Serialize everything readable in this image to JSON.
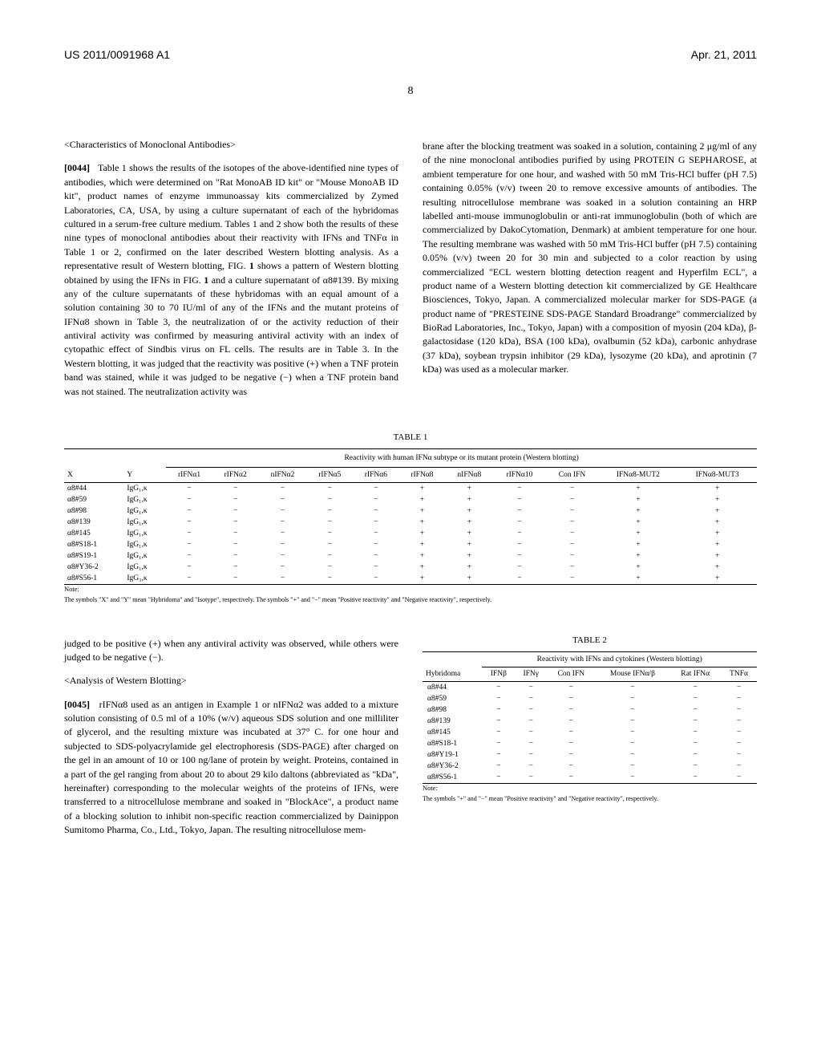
{
  "header": {
    "patent_number": "US 2011/0091968 A1",
    "date": "Apr. 21, 2011"
  },
  "page_number": "8",
  "section1_title": "<Characteristics of Monoclonal Antibodies>",
  "para_0044_num": "[0044]",
  "para_0044_text": "Table 1 shows the results of the isotopes of the above-identified nine types of antibodies, which were determined on \"Rat MonoAB ID kit\" or \"Mouse MonoAB ID kit\", product names of enzyme immunoassay kits commercialized by Zymed Laboratories, CA, USA, by using a culture supernatant of each of the hybridomas cultured in a serum-free culture medium. Tables 1 and 2 show both the results of these nine types of monoclonal antibodies about their reactivity with IFNs and TNFα in Table 1 or 2, confirmed on the later described Western blotting analysis. As a representative result of Western blotting, FIG. ",
  "para_0044_figref": "1",
  "para_0044_text2": " shows a pattern of Western blotting obtained by using the IFNs in FIG. ",
  "para_0044_figref2": "1",
  "para_0044_text3": " and a culture supernatant of α8#139. By mixing any of the culture supernatants of these hybridomas with an equal amount of a solution containing 30 to 70 IU/ml of any of the IFNs and the mutant proteins of IFNα8 shown in Table 3, the neutralization of or the activity reduction of their antiviral activity was confirmed by measuring antiviral activity with an index of cytopathic effect of Sindbis virus on FL cells. The results are in Table 3. In the Western blotting, it was judged that the reactivity was positive (+) when a TNF protein band was stained, while it was judged to be negative (−) when a TNF protein band was not stained. The neutralization activity was",
  "col2_para1": "brane after the blocking treatment was soaked in a solution, containing 2 μg/ml of any of the nine monoclonal antibodies purified by using PROTEIN G SEPHAROSE, at ambient temperature for one hour, and washed with 50 mM Tris-HCl buffer (pH 7.5) containing 0.05% (v/v) tween 20 to remove excessive amounts of antibodies. The resulting nitrocellulose membrane was soaked in a solution containing an HRP labelled anti-mouse immunoglobulin or anti-rat immunoglobulin (both of which are commercialized by DakoCytomation, Denmark) at ambient temperature for one hour. The resulting membrane was washed with 50 mM Tris-HCl buffer (pH 7.5) containing 0.05% (v/v) tween 20 for 30 min and subjected to a color reaction by using commercialized \"ECL western blotting detection reagent and Hyperfilm ECL\", a product name of a Western blotting detection kit commercialized by GE Healthcare Biosciences, Tokyo, Japan. A commercialized molecular marker for SDS-PAGE (a product name of \"PRESTEINE SDS-PAGE Standard Broadrange\" commercialized by BioRad Laboratories, Inc., Tokyo, Japan) with a composition of myosin (204 kDa), β-galactosidase (120 kDa), BSA (100 kDa), ovalbumin (52 kDa), carbonic anhydrase (37 kDa), soybean trypsin inhibitor (29 kDa), lysozyme (20 kDa), and aprotinin (7 kDa) was used as a molecular marker.",
  "table1": {
    "label": "TABLE 1",
    "header_span": "Reactivity with human IFNα subtype or its mutant protein (Western blotting)",
    "cols": [
      "X",
      "Y",
      "rIFNα1",
      "rIFNα2",
      "nIFNα2",
      "rIFNα5",
      "rIFNα6",
      "rIFNα8",
      "nIFNα8",
      "rIFNα10",
      "Con IFN",
      "IFNα8-MUT2",
      "IFNα8-MUT3"
    ],
    "rows": [
      [
        "α8#44",
        "IgG₁,κ",
        "−",
        "−",
        "−",
        "−",
        "−",
        "+",
        "+",
        "−",
        "−",
        "+",
        "+"
      ],
      [
        "α8#59",
        "IgG₁,κ",
        "−",
        "−",
        "−",
        "−",
        "−",
        "+",
        "+",
        "−",
        "−",
        "+",
        "+"
      ],
      [
        "α8#98",
        "IgG₁,κ",
        "−",
        "−",
        "−",
        "−",
        "−",
        "+",
        "+",
        "−",
        "−",
        "+",
        "+"
      ],
      [
        "α8#139",
        "IgG₁,κ",
        "−",
        "−",
        "−",
        "−",
        "−",
        "+",
        "+",
        "−",
        "−",
        "+",
        "+"
      ],
      [
        "α8#145",
        "IgG₁,κ",
        "−",
        "−",
        "−",
        "−",
        "−",
        "+",
        "+",
        "−",
        "−",
        "+",
        "+"
      ],
      [
        "α8#S18-1",
        "IgG₁,κ",
        "−",
        "−",
        "−",
        "−",
        "−",
        "+",
        "+",
        "−",
        "−",
        "+",
        "+"
      ],
      [
        "α8#S19-1",
        "IgG₁,κ",
        "−",
        "−",
        "−",
        "−",
        "−",
        "+",
        "+",
        "−",
        "−",
        "+",
        "+"
      ],
      [
        "α8#Y36-2",
        "IgG₁,κ",
        "−",
        "−",
        "−",
        "−",
        "−",
        "+",
        "+",
        "−",
        "−",
        "+",
        "+"
      ],
      [
        "α8#S56-1",
        "IgG₃,κ",
        "−",
        "−",
        "−",
        "−",
        "−",
        "+",
        "+",
        "−",
        "−",
        "+",
        "+"
      ]
    ],
    "note_title": "Note:",
    "note_text": "The symbols \"X\" and \"Y\" mean \"Hybridoma\" and \"Isotype\", respectively. The symbols \"+\" and \"−\" mean \"Positive reactivity\" and \"Negative reactivity\", respectively."
  },
  "lower_para1": "judged to be positive (+) when any antiviral activity was observed, while others were judged to be negative (−).",
  "section2_title": "<Analysis of Western Blotting>",
  "para_0045_num": "[0045]",
  "para_0045_text": "rIFNα8 used as an antigen in Example 1 or nIFNα2 was added to a mixture solution consisting of 0.5 ml of a 10% (w/v) aqueous SDS solution and one milliliter of glycerol, and the resulting mixture was incubated at 37° C. for one hour and subjected to SDS-polyacrylamide gel electrophoresis (SDS-PAGE) after charged on the gel in an amount of 10 or 100 ng/lane of protein by weight. Proteins, contained in a part of the gel ranging from about 20 to about 29 kilo daltons (abbreviated as \"kDa\", hereinafter) corresponding to the molecular weights of the proteins of IFNs, were transferred to a nitrocellulose membrane and soaked in \"BlockAce\", a product name of a blocking solution to inhibit non-specific reaction commercialized by Dainippon Sumitomo Pharma, Co., Ltd., Tokyo, Japan. The resulting nitrocellulose mem-",
  "table2": {
    "label": "TABLE 2",
    "header_span": "Reactivity with IFNs and cytokines (Western blotting)",
    "cols": [
      "Hybridoma",
      "IFNβ",
      "IFNγ",
      "Con IFN",
      "Mouse IFNα/β",
      "Rat IFNα",
      "TNFα"
    ],
    "rows": [
      [
        "α8#44",
        "−",
        "−",
        "−",
        "−",
        "−",
        "−"
      ],
      [
        "α8#59",
        "−",
        "−",
        "−",
        "−",
        "−",
        "−"
      ],
      [
        "α8#98",
        "−",
        "−",
        "−",
        "−",
        "−",
        "−"
      ],
      [
        "α8#139",
        "−",
        "−",
        "−",
        "−",
        "−",
        "−"
      ],
      [
        "α8#145",
        "−",
        "−",
        "−",
        "−",
        "−",
        "−"
      ],
      [
        "α8#S18-1",
        "−",
        "−",
        "−",
        "−",
        "−",
        "−"
      ],
      [
        "α8#Y19-1",
        "−",
        "−",
        "−",
        "−",
        "−",
        "−"
      ],
      [
        "α8#Y36-2",
        "−",
        "−",
        "−",
        "−",
        "−",
        "−"
      ],
      [
        "α8#S56-1",
        "−",
        "−",
        "−",
        "−",
        "−",
        "−"
      ]
    ],
    "note_title": "Note:",
    "note_text": "The symbols \"+\" and \"−\" mean \"Positive reactivity\" and \"Negative reactivity\", respectively."
  }
}
